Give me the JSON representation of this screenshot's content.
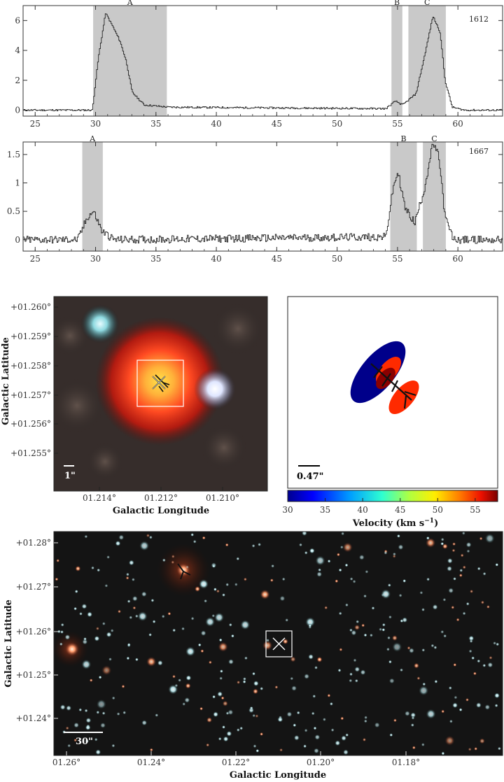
{
  "chart_data": [
    {
      "type": "line",
      "panel_label": "1612",
      "xlim": [
        24,
        63.7
      ],
      "ylim": [
        -0.4,
        7.0
      ],
      "x_ticks": [
        25,
        30,
        35,
        40,
        45,
        50,
        55,
        60
      ],
      "y_ticks": [
        0,
        2,
        4,
        6
      ],
      "shaded_regions": [
        {
          "label": "A",
          "from": 29.8,
          "to": 35.9
        },
        {
          "label": "B",
          "from": 54.5,
          "to": 55.4
        },
        {
          "label": "C",
          "from": 55.9,
          "to": 59.0
        }
      ],
      "peaks": [
        {
          "x": 28.0,
          "y": 0.0
        },
        {
          "x": 29.7,
          "y": 0.0
        },
        {
          "x": 30.2,
          "y": 3.5
        },
        {
          "x": 30.8,
          "y": 6.5
        },
        {
          "x": 31.4,
          "y": 5.6
        },
        {
          "x": 32.0,
          "y": 4.6
        },
        {
          "x": 32.5,
          "y": 3.3
        },
        {
          "x": 33.0,
          "y": 1.2
        },
        {
          "x": 34.0,
          "y": 0.35
        },
        {
          "x": 36.0,
          "y": 0.2
        },
        {
          "x": 54.0,
          "y": 0.1
        },
        {
          "x": 54.8,
          "y": 0.6
        },
        {
          "x": 55.4,
          "y": 0.35
        },
        {
          "x": 56.5,
          "y": 1.1
        },
        {
          "x": 57.2,
          "y": 3.6
        },
        {
          "x": 57.9,
          "y": 6.3
        },
        {
          "x": 58.5,
          "y": 5.2
        },
        {
          "x": 58.9,
          "y": 2.0
        },
        {
          "x": 59.5,
          "y": 0.2
        },
        {
          "x": 60.5,
          "y": 0.0
        }
      ]
    },
    {
      "type": "line",
      "panel_label": "1667",
      "xlim": [
        24,
        63.7
      ],
      "ylim": [
        -0.2,
        1.72
      ],
      "x_ticks": [
        25,
        30,
        35,
        40,
        45,
        50,
        55,
        60
      ],
      "y_ticks": [
        0,
        0.5,
        1,
        1.5
      ],
      "shaded_regions": [
        {
          "label": "A",
          "from": 28.9,
          "to": 30.6
        },
        {
          "label": "B",
          "from": 54.4,
          "to": 56.6
        },
        {
          "label": "C",
          "from": 57.1,
          "to": 59.0
        }
      ],
      "peaks": [
        {
          "x": 28.5,
          "y": 0.0
        },
        {
          "x": 29.3,
          "y": 0.4
        },
        {
          "x": 29.8,
          "y": 0.5
        },
        {
          "x": 30.5,
          "y": 0.15
        },
        {
          "x": 31.5,
          "y": 0.0
        },
        {
          "x": 54.0,
          "y": 0.05
        },
        {
          "x": 54.6,
          "y": 0.9
        },
        {
          "x": 55.0,
          "y": 1.2
        },
        {
          "x": 55.6,
          "y": 0.55
        },
        {
          "x": 56.4,
          "y": 0.3
        },
        {
          "x": 57.2,
          "y": 0.9
        },
        {
          "x": 57.9,
          "y": 1.7
        },
        {
          "x": 58.4,
          "y": 1.45
        },
        {
          "x": 58.9,
          "y": 0.4
        },
        {
          "x": 59.6,
          "y": 0.0
        }
      ]
    },
    {
      "type": "heatmap",
      "x_ticks": [
        "01.214°",
        "01.212°",
        "01.210°"
      ],
      "y_ticks": [
        "+01.255°",
        "+01.256°",
        "+01.257°",
        "+01.258°",
        "+01.259°",
        "+01.260°"
      ],
      "xlabel": "Galactic Longitude",
      "ylabel": "Galactic Latitude",
      "scalebar_label": "1\""
    },
    {
      "type": "scatter",
      "scalebar_label": "0.47\"",
      "colorbar_ticks": [
        30,
        35,
        40,
        45,
        50,
        55
      ],
      "colorbar_range": [
        30,
        58
      ],
      "colorbar_label": "Velocity (km s",
      "colorbar_label_sup": "−1",
      "colorbar_label_end": ")"
    },
    {
      "type": "heatmap",
      "x_ticks": [
        "01.26°",
        "01.24°",
        "01.22°",
        "01.20°",
        "01.18°"
      ],
      "y_ticks": [
        "+01.24°",
        "+01.25°",
        "+01.26°",
        "+01.27°",
        "+01.28°"
      ],
      "xlabel": "Galactic Longitude",
      "ylabel": "Galactic Latitude",
      "scalebar_label": "30\""
    }
  ]
}
